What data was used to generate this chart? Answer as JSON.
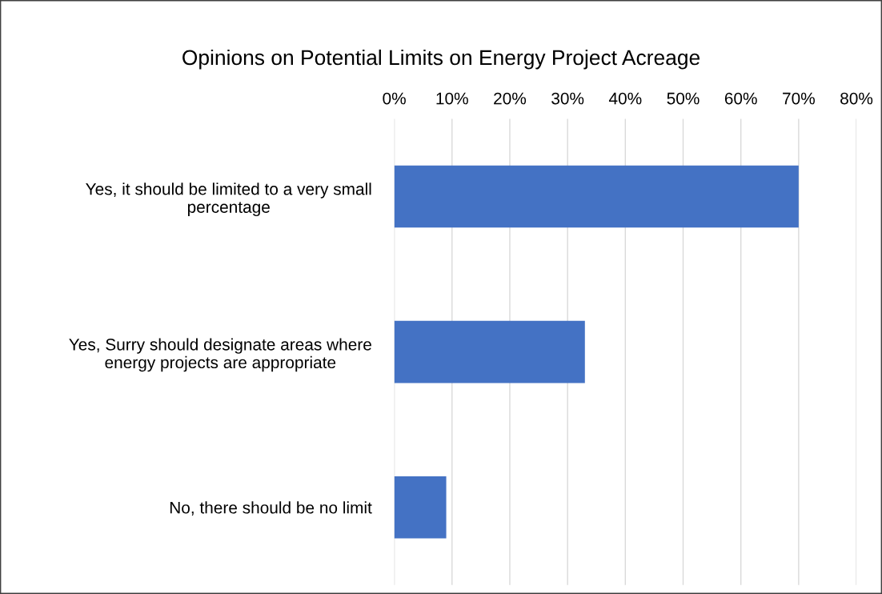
{
  "chart_data": {
    "type": "bar",
    "orientation": "horizontal",
    "title": "Opinions on Potential Limits on Energy Project Acreage",
    "categories": [
      "Yes, it should be limited to a very small\npercentage",
      "Yes, Surry should designate areas where\nenergy projects are appropriate",
      "No, there should be no limit"
    ],
    "values": [
      70,
      33,
      9
    ],
    "color": "#4472c4",
    "xlim": [
      0,
      80
    ],
    "xticks": [
      {
        "value": 0,
        "label": "0%"
      },
      {
        "value": 10,
        "label": "10%"
      },
      {
        "value": 20,
        "label": "20%"
      },
      {
        "value": 30,
        "label": "30%"
      },
      {
        "value": 40,
        "label": "40%"
      },
      {
        "value": 50,
        "label": "50%"
      },
      {
        "value": 60,
        "label": "60%"
      },
      {
        "value": 70,
        "label": "70%"
      },
      {
        "value": 80,
        "label": "80%"
      }
    ],
    "grid": "x"
  }
}
